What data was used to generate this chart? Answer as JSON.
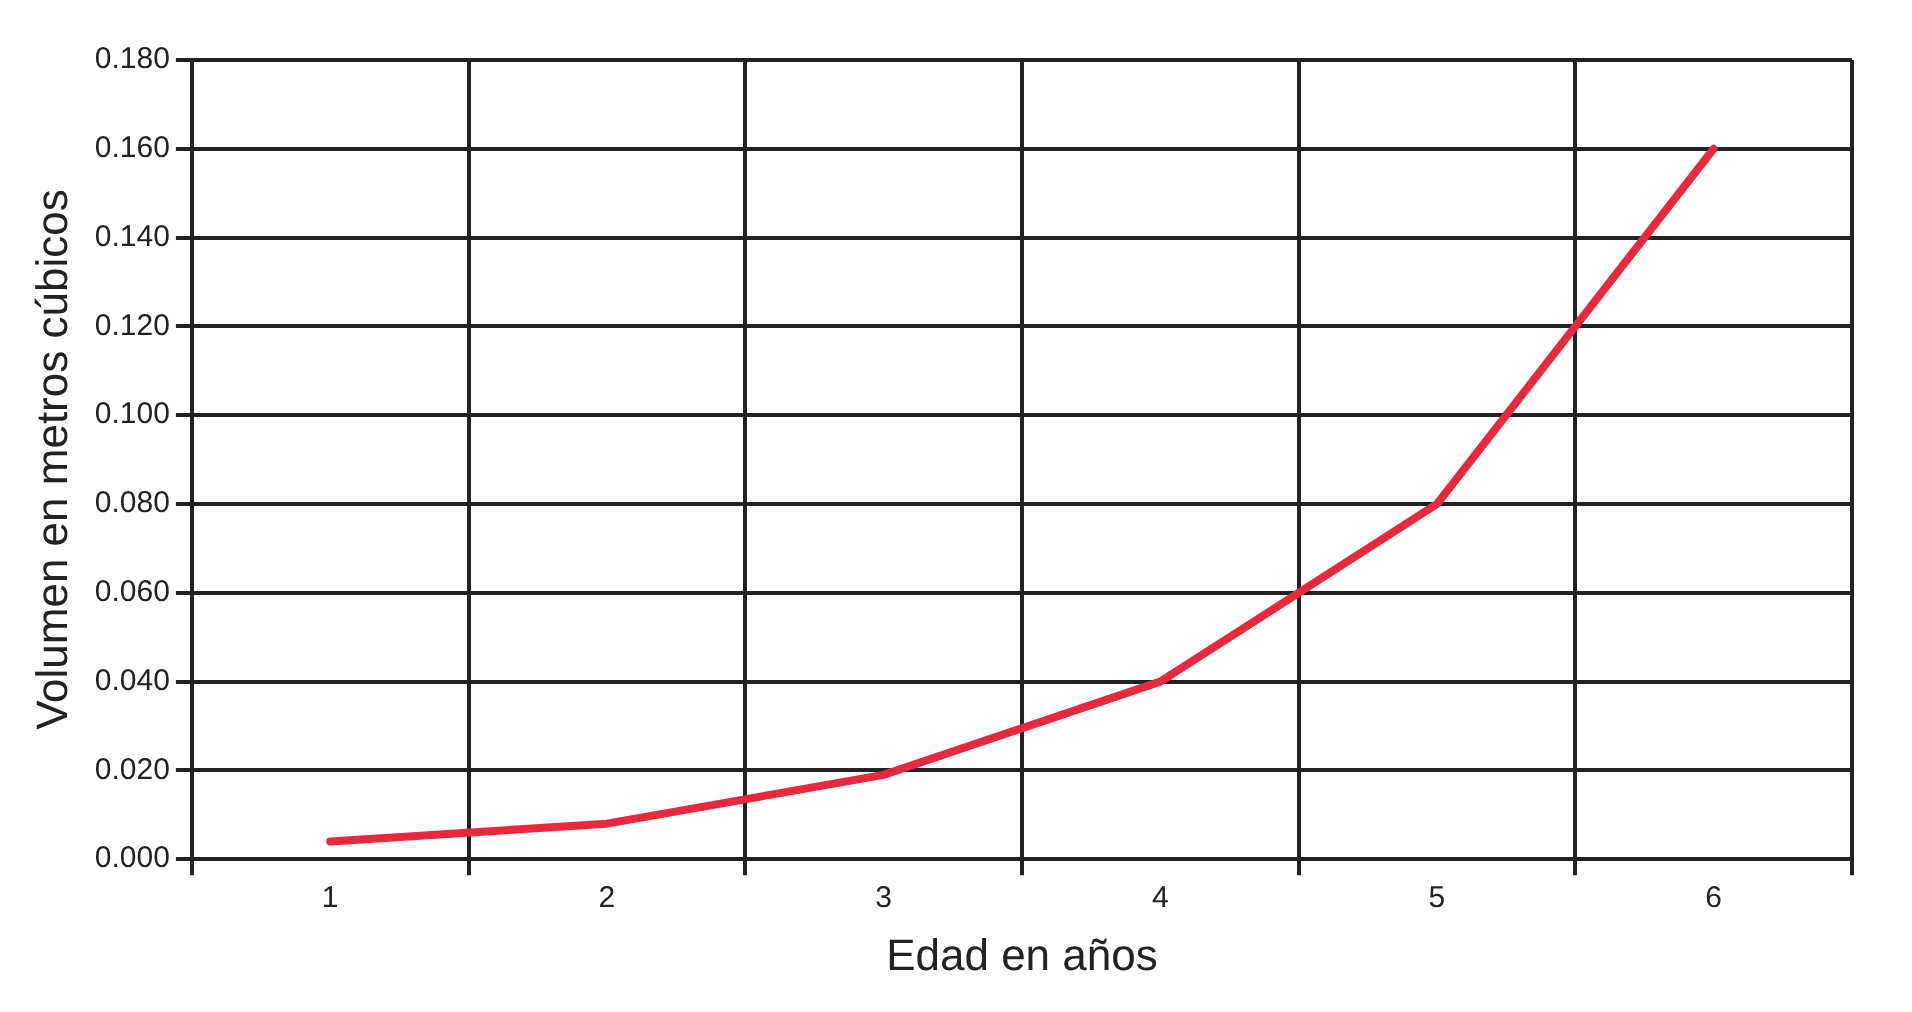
{
  "chart_data": {
    "type": "line",
    "xlabel": "Edad en años",
    "ylabel": "Volumen en metros cúbicos",
    "categories": [
      "1",
      "2",
      "3",
      "4",
      "5",
      "6"
    ],
    "series": [
      {
        "color": "#e8283c",
        "values": [
          0.004,
          0.008,
          0.019,
          0.04,
          0.08,
          0.16
        ]
      }
    ],
    "ylim": [
      0,
      0.18
    ],
    "yticks": [
      {
        "value": 0,
        "label": "0.000"
      },
      {
        "value": 0.02,
        "label": "0.020"
      },
      {
        "value": 0.04,
        "label": "0.040"
      },
      {
        "value": 0.06,
        "label": "0.060"
      },
      {
        "value": 0.08,
        "label": "0.080"
      },
      {
        "value": 0.1,
        "label": "0.100"
      },
      {
        "value": 0.12,
        "label": "0.120"
      },
      {
        "value": 0.14,
        "label": "0.140"
      },
      {
        "value": 0.16,
        "label": "0.160"
      },
      {
        "value": 0.18,
        "label": "0.180"
      }
    ],
    "grid": true,
    "legend": false,
    "marker": "none",
    "line_style": "solid"
  }
}
